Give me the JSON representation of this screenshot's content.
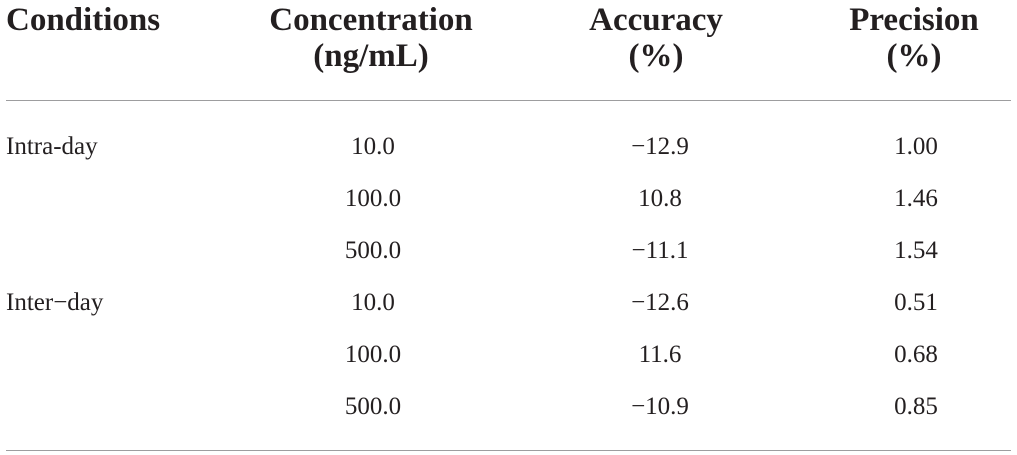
{
  "table": {
    "headers": {
      "conditions": "Conditions",
      "concentration": [
        "Concentration",
        "(ng/mL)"
      ],
      "accuracy": [
        "Accuracy",
        "(%)"
      ],
      "precision": [
        "Precision",
        "(%)"
      ]
    },
    "rows": [
      {
        "condition": "Intra-day",
        "concentration": "10.0",
        "accuracy": "−12.9",
        "precision": "1.00"
      },
      {
        "condition": "",
        "concentration": "100.0",
        "accuracy": "10.8",
        "precision": "1.46"
      },
      {
        "condition": "",
        "concentration": "500.0",
        "accuracy": "−11.1",
        "precision": "1.54"
      },
      {
        "condition": "Inter−day",
        "concentration": "10.0",
        "accuracy": "−12.6",
        "precision": "0.51"
      },
      {
        "condition": "",
        "concentration": "100.0",
        "accuracy": "11.6",
        "precision": "0.68"
      },
      {
        "condition": "",
        "concentration": "500.0",
        "accuracy": "−10.9",
        "precision": "0.85"
      }
    ]
  }
}
